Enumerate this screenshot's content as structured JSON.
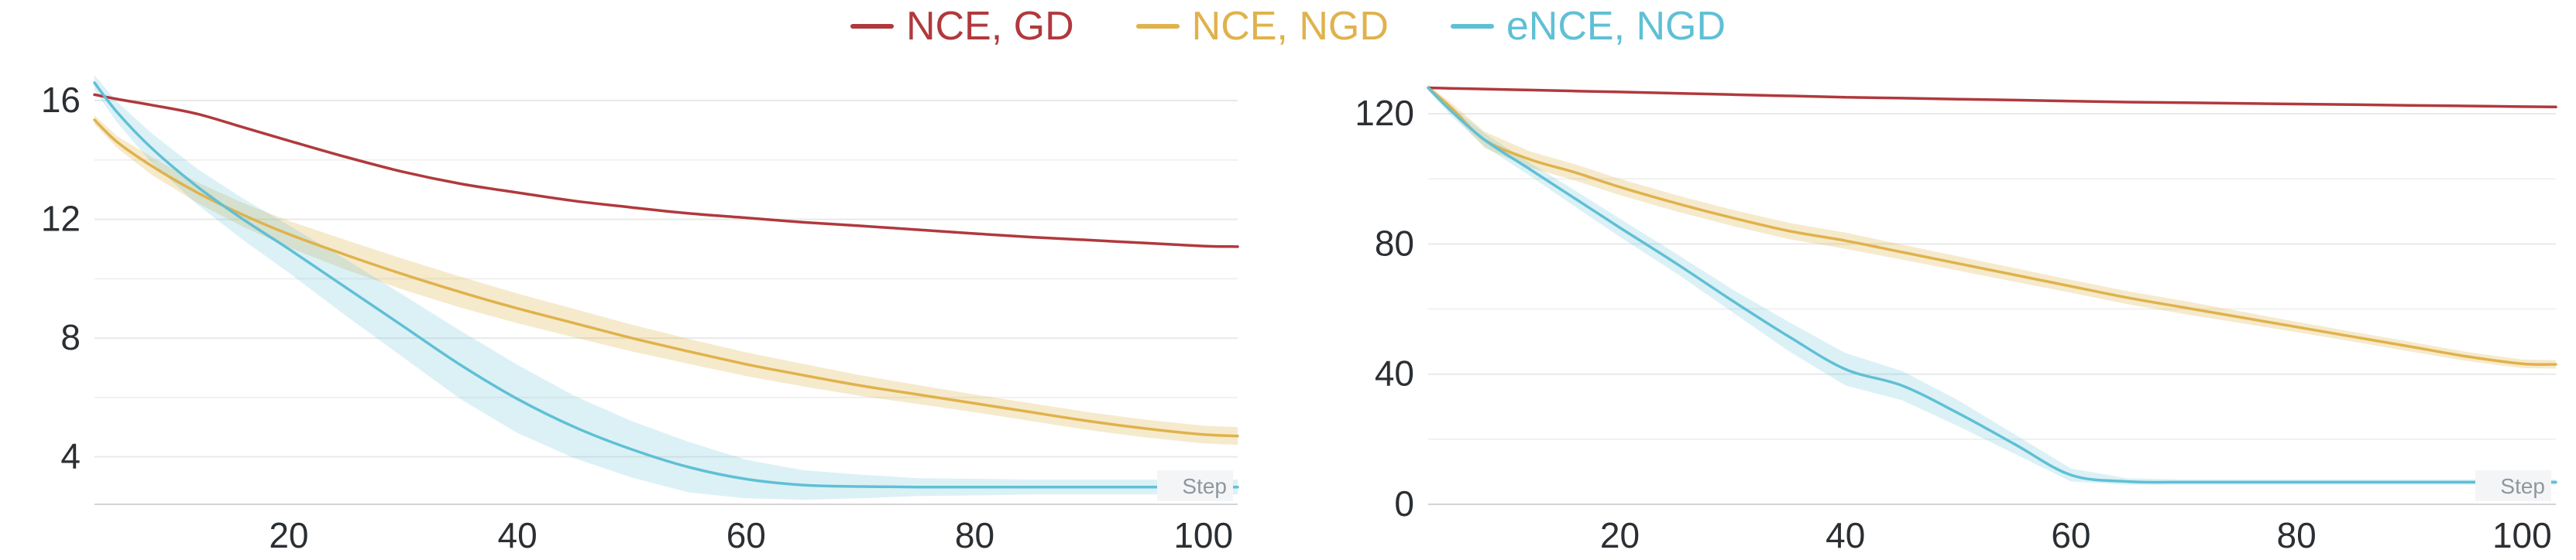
{
  "legend": {
    "items": [
      {
        "label": "NCE, GD",
        "color": "#b0393d"
      },
      {
        "label": "NCE, NGD",
        "color": "#e0b24c"
      },
      {
        "label": "eNCE, NGD",
        "color": "#5fc0d5"
      }
    ]
  },
  "chart_data": [
    {
      "type": "line",
      "title": "",
      "xlabel": "Step",
      "ylabel": "",
      "xlim": [
        3,
        103
      ],
      "ylim": [
        2.4,
        17.2
      ],
      "x_ticks": [
        20,
        40,
        60,
        80,
        100
      ],
      "y_ticks": [
        4,
        8,
        12,
        16
      ],
      "y_grid_minor": [
        6,
        10,
        14
      ],
      "legend_position": "top-center",
      "grid": true,
      "series": [
        {
          "name": "NCE, GD",
          "color": "#b0393d",
          "x": [
            3,
            5,
            8,
            12,
            16,
            20,
            25,
            30,
            35,
            40,
            45,
            50,
            55,
            60,
            65,
            70,
            75,
            80,
            85,
            90,
            95,
            100,
            103
          ],
          "y": [
            16.2,
            16.05,
            15.85,
            15.55,
            15.1,
            14.65,
            14.1,
            13.6,
            13.2,
            12.9,
            12.62,
            12.4,
            12.2,
            12.05,
            11.9,
            11.78,
            11.65,
            11.52,
            11.4,
            11.3,
            11.2,
            11.1,
            11.08
          ]
        },
        {
          "name": "NCE, NGD",
          "color": "#e0b24c",
          "band_opacity": 0.28,
          "x": [
            3,
            5,
            8,
            12,
            16,
            20,
            25,
            30,
            35,
            40,
            45,
            50,
            55,
            60,
            65,
            70,
            75,
            80,
            85,
            90,
            95,
            100,
            103
          ],
          "y": [
            15.35,
            14.6,
            13.8,
            12.9,
            12.15,
            11.5,
            10.8,
            10.15,
            9.55,
            9.0,
            8.5,
            8.0,
            7.55,
            7.12,
            6.75,
            6.4,
            6.1,
            5.8,
            5.5,
            5.2,
            4.95,
            4.75,
            4.7
          ],
          "band_hw": [
            0.15,
            0.2,
            0.3,
            0.35,
            0.4,
            0.45,
            0.5,
            0.52,
            0.52,
            0.5,
            0.48,
            0.45,
            0.42,
            0.4,
            0.38,
            0.35,
            0.32,
            0.3,
            0.3,
            0.3,
            0.3,
            0.3,
            0.3
          ]
        },
        {
          "name": "eNCE, NGD",
          "color": "#5fc0d5",
          "band_opacity": 0.22,
          "x": [
            3,
            5,
            8,
            12,
            16,
            20,
            25,
            30,
            35,
            40,
            45,
            50,
            55,
            60,
            65,
            70,
            75,
            80,
            85,
            90,
            95,
            100,
            103
          ],
          "y": [
            16.6,
            15.6,
            14.4,
            13.1,
            12.0,
            11.0,
            9.7,
            8.4,
            7.1,
            5.95,
            5.0,
            4.25,
            3.65,
            3.25,
            3.05,
            3.0,
            2.98,
            2.98,
            2.98,
            2.98,
            2.98,
            2.98,
            2.98
          ],
          "band_hw": [
            0.25,
            0.35,
            0.5,
            0.6,
            0.7,
            0.8,
            0.95,
            1.05,
            1.15,
            1.15,
            1.05,
            0.95,
            0.85,
            0.65,
            0.5,
            0.4,
            0.3,
            0.28,
            0.25,
            0.25,
            0.25,
            0.25,
            0.25
          ]
        }
      ]
    },
    {
      "type": "line",
      "title": "",
      "xlabel": "Step",
      "ylabel": "",
      "xlim": [
        3,
        103
      ],
      "ylim": [
        0,
        135
      ],
      "x_ticks": [
        20,
        40,
        60,
        80,
        100
      ],
      "y_ticks": [
        0,
        40,
        80,
        120
      ],
      "y_grid_minor": [
        20,
        60,
        100
      ],
      "legend_position": "top-center",
      "grid": true,
      "series": [
        {
          "name": "NCE, GD",
          "color": "#b0393d",
          "x": [
            3,
            5,
            8,
            12,
            16,
            20,
            25,
            30,
            35,
            40,
            45,
            50,
            55,
            60,
            65,
            70,
            75,
            80,
            85,
            90,
            95,
            100,
            103
          ],
          "y": [
            128,
            127.8,
            127.6,
            127.3,
            127,
            126.7,
            126.3,
            125.9,
            125.5,
            125.1,
            124.8,
            124.5,
            124.2,
            123.9,
            123.6,
            123.4,
            123.2,
            123,
            122.8,
            122.6,
            122.4,
            122.2,
            122.1
          ]
        },
        {
          "name": "NCE, NGD",
          "color": "#e0b24c",
          "band_opacity": 0.28,
          "x": [
            3,
            5,
            8,
            12,
            16,
            20,
            25,
            30,
            35,
            40,
            45,
            50,
            55,
            60,
            65,
            70,
            75,
            80,
            85,
            90,
            95,
            100,
            103
          ],
          "y": [
            128,
            122,
            112,
            106,
            102,
            97.5,
            92.5,
            88,
            84,
            81,
            77.5,
            74,
            70.5,
            67,
            63.5,
            60.5,
            57.5,
            54.5,
            51.5,
            48.5,
            45.5,
            43.2,
            43
          ],
          "band_hw": [
            0.8,
            1.5,
            2.5,
            2.5,
            2.5,
            2.5,
            2.5,
            2.5,
            2.5,
            2.5,
            2.3,
            2.2,
            2.1,
            2,
            2,
            2,
            1.8,
            1.6,
            1.5,
            1.5,
            1.4,
            1.3,
            1.3
          ]
        },
        {
          "name": "eNCE, NGD",
          "color": "#5fc0d5",
          "band_opacity": 0.22,
          "x": [
            3,
            5,
            8,
            12,
            16,
            20,
            25,
            30,
            35,
            40,
            45,
            50,
            55,
            60,
            65,
            70,
            75,
            80,
            85,
            90,
            95,
            100,
            103
          ],
          "y": [
            128,
            121,
            112,
            103,
            94,
            85,
            74,
            62.5,
            51.5,
            41.5,
            36.5,
            28,
            18.5,
            9,
            7,
            6.8,
            6.8,
            6.8,
            6.8,
            6.8,
            6.8,
            6.8,
            6.8
          ],
          "band_hw": [
            0.8,
            1.5,
            2,
            2,
            2.5,
            2.8,
            3,
            3.5,
            4.5,
            5,
            4.5,
            4,
            3,
            2,
            1,
            0.8,
            0.8,
            0.8,
            0.8,
            0.8,
            0.8,
            0.8,
            0.8
          ]
        }
      ]
    }
  ]
}
